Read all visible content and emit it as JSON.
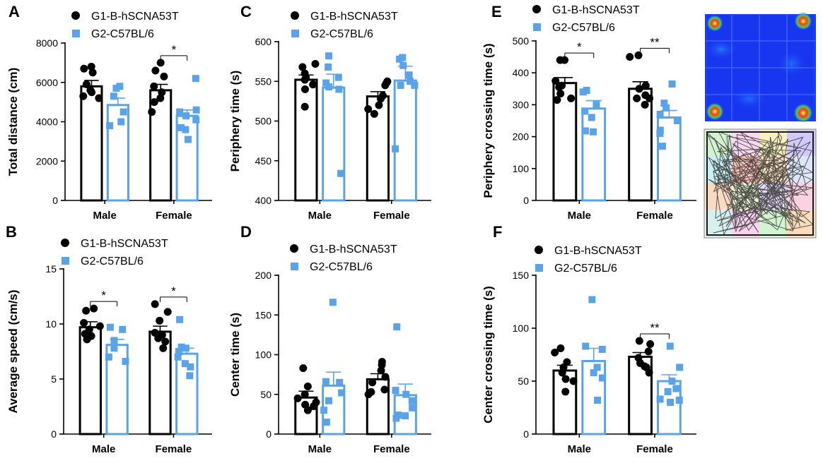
{
  "figure": {
    "legend": {
      "g1": {
        "label": "G1-B-hSCNA53T",
        "color": "#000000",
        "marker": "circle"
      },
      "g2": {
        "label": "G2-C57BL/6",
        "color": "#5ba3e8",
        "marker": "square"
      }
    },
    "heatmap_image": {
      "description_icon": "heatmap-icon",
      "grid": "4x4",
      "hot_corners": [
        "top-left",
        "top-right",
        "bottom-left",
        "bottom-right"
      ]
    },
    "track_image": {
      "description_icon": "trajectory-icon",
      "grid": "4x4"
    }
  },
  "chart_data": [
    {
      "panel": "A",
      "type": "bar",
      "ylabel": "Total distance (cm)",
      "ylim": [
        0,
        8000
      ],
      "yticks": [
        0,
        2000,
        4000,
        6000,
        8000
      ],
      "categories": [
        "Male",
        "Female"
      ],
      "series": [
        {
          "name": "G1-B-hSCNA53T",
          "means": [
            5800,
            5600
          ],
          "sem": [
            300,
            300
          ],
          "points": [
            [
              6800,
              6500,
              6700,
              5900,
              5600,
              5500,
              5300,
              5200
            ],
            [
              7000,
              6600,
              6300,
              5800,
              5500,
              5200,
              5000,
              4500
            ]
          ]
        },
        {
          "name": "G2-C57BL/6",
          "means": [
            4850,
            4300
          ],
          "sem": [
            350,
            300
          ],
          "points": [
            [
              5800,
              5700,
              5300,
              4500,
              4000,
              3800
            ],
            [
              6200,
              4600,
              4500,
              4300,
              4100,
              3700,
              3600,
              3100
            ]
          ]
        }
      ],
      "significance": [
        {
          "category": "Female",
          "label": "*"
        }
      ]
    },
    {
      "panel": "B",
      "type": "bar",
      "ylabel": "Average speed (cm/s)",
      "ylim": [
        0,
        15
      ],
      "yticks": [
        0,
        5,
        10,
        15
      ],
      "categories": [
        "Male",
        "Female"
      ],
      "series": [
        {
          "name": "G1-B-hSCNA53T",
          "means": [
            9.7,
            9.3
          ],
          "sem": [
            0.5,
            0.5
          ],
          "points": [
            [
              11.4,
              11.2,
              10.1,
              9.8,
              9.5,
              9.1,
              8.9,
              8.6
            ],
            [
              11.8,
              11.1,
              10.3,
              9.2,
              9.0,
              8.7,
              8.4,
              7.8
            ]
          ]
        },
        {
          "name": "G2-C57BL/6",
          "means": [
            8.1,
            7.3
          ],
          "sem": [
            0.5,
            0.5
          ],
          "points": [
            [
              9.7,
              9.5,
              8.5,
              7.8,
              7.0,
              6.6
            ],
            [
              10.4,
              7.9,
              7.8,
              7.5,
              7.0,
              6.4,
              6.1,
              5.3
            ]
          ]
        }
      ],
      "significance": [
        {
          "category": "Male",
          "label": "*"
        },
        {
          "category": "Female",
          "label": "*"
        }
      ]
    },
    {
      "panel": "C",
      "type": "bar",
      "ylabel": "Periphery time (s)",
      "ylim": [
        400,
        600
      ],
      "yticks": [
        400,
        450,
        500,
        550,
        600
      ],
      "categories": [
        "Male",
        "Female"
      ],
      "series": [
        {
          "name": "G1-B-hSCNA53T",
          "means": [
            552,
            531
          ],
          "sem": [
            6,
            6
          ],
          "points": [
            [
              572,
              568,
              560,
              555,
              552,
              546,
              540,
              518
            ],
            [
              550,
              548,
              545,
              532,
              528,
              520,
              515,
              509
            ]
          ]
        },
        {
          "name": "G2-C57BL/6",
          "means": [
            542,
            551
          ],
          "sem": [
            17,
            18
          ],
          "points": [
            [
              582,
              568,
              555,
              548,
              543,
              540,
              434
            ],
            [
              580,
              578,
              570,
              558,
              550,
              545,
              545,
              465
            ]
          ]
        }
      ],
      "significance": []
    },
    {
      "panel": "D",
      "type": "bar",
      "ylabel": "Center time (s)",
      "ylim": [
        0,
        200
      ],
      "yticks": [
        0,
        50,
        100,
        150,
        200
      ],
      "categories": [
        "Male",
        "Female"
      ],
      "series": [
        {
          "name": "G1-B-hSCNA53T",
          "means": [
            46,
            69
          ],
          "sem": [
            8,
            7
          ],
          "points": [
            [
              83,
              60,
              50,
              45,
              40,
              37,
              35,
              30
            ],
            [
              91,
              87,
              80,
              72,
              65,
              56,
              53,
              50
            ]
          ]
        },
        {
          "name": "G2-C57BL/6",
          "means": [
            61,
            49
          ],
          "sem": [
            17,
            14
          ],
          "points": [
            [
              166,
              66,
              65,
              52,
              42,
              30,
              15
            ],
            [
              135,
              55,
              50,
              42,
              33,
              24,
              23,
              20
            ]
          ]
        }
      ],
      "significance": []
    },
    {
      "panel": "E",
      "type": "bar",
      "ylabel": "Periphery crossing time (s)",
      "ylim": [
        0,
        500
      ],
      "yticks": [
        0,
        100,
        200,
        300,
        400,
        500
      ],
      "categories": [
        "Male",
        "Female"
      ],
      "series": [
        {
          "name": "G1-B-hSCNA53T",
          "means": [
            368,
            350
          ],
          "sem": [
            17,
            22
          ],
          "points": [
            [
              440,
              440,
              375,
              360,
              355,
              335,
              320,
              315
            ],
            [
              455,
              450,
              360,
              350,
              330,
              320,
              320,
              300
            ]
          ]
        },
        {
          "name": "G2-C57BL/6",
          "means": [
            288,
            260
          ],
          "sem": [
            25,
            22
          ],
          "points": [
            [
              345,
              340,
              300,
              280,
              260,
              218,
              215
            ],
            [
              365,
              305,
              290,
              270,
              250,
              220,
              210,
              170
            ]
          ]
        }
      ],
      "significance": [
        {
          "category": "Male",
          "label": "*"
        },
        {
          "category": "Female",
          "label": "**"
        }
      ]
    },
    {
      "panel": "F",
      "type": "bar",
      "ylabel": "Center crossing time (s)",
      "ylim": [
        0,
        150
      ],
      "yticks": [
        0,
        50,
        100,
        150
      ],
      "categories": [
        "Male",
        "Female"
      ],
      "series": [
        {
          "name": "G1-B-hSCNA53T",
          "means": [
            60,
            73
          ],
          "sem": [
            5,
            4
          ],
          "points": [
            [
              81,
              77,
              68,
              63,
              58,
              52,
              50,
              40
            ],
            [
              88,
              85,
              78,
              72,
              67,
              64,
              63,
              58
            ]
          ]
        },
        {
          "name": "G2-C57BL/6",
          "means": [
            69,
            50
          ],
          "sem": [
            12,
            6
          ],
          "points": [
            [
              127,
              83,
              80,
              63,
              58,
              53,
              32
            ],
            [
              83,
              63,
              50,
              43,
              40,
              33,
              32,
              30
            ]
          ]
        }
      ],
      "significance": [
        {
          "category": "Female",
          "label": "**"
        }
      ]
    }
  ]
}
